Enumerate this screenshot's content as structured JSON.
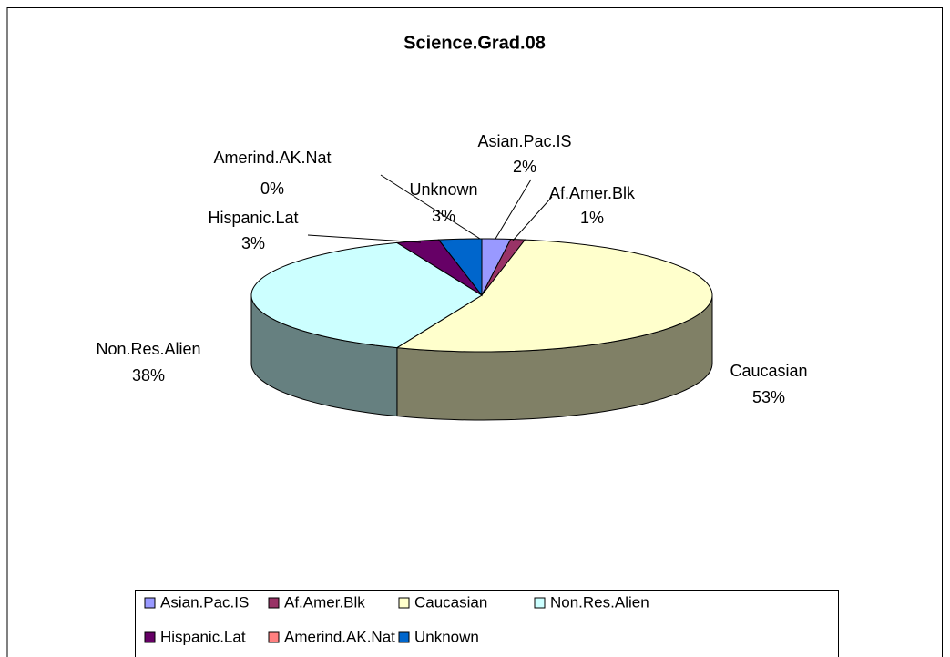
{
  "chart_data": {
    "type": "pie3d",
    "title": "Science.Grad.08",
    "categories": [
      "Asian.Pac.IS",
      "Af.Amer.Blk",
      "Caucasian",
      "Non.Res.Alien",
      "Hispanic.Lat",
      "Amerind.AK.Nat",
      "Unknown"
    ],
    "values": [
      2,
      1,
      53,
      38,
      3,
      0,
      3
    ],
    "value_labels": [
      "2%",
      "1%",
      "53%",
      "38%",
      "3%",
      "0%",
      "3%"
    ],
    "colors": [
      "#9999ff",
      "#993366",
      "#ffffcc",
      "#ccffff",
      "#660066",
      "#ff8080",
      "#0066cc"
    ],
    "legend": "bottom"
  }
}
